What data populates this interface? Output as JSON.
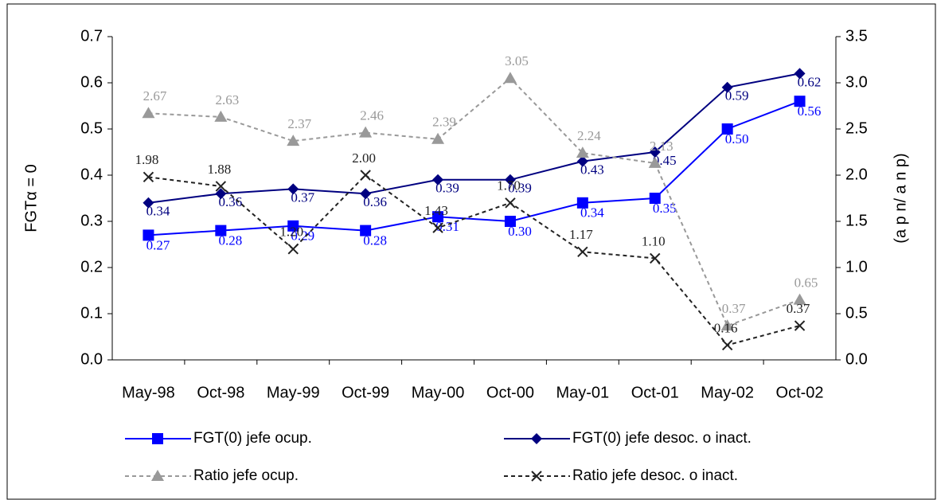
{
  "chart_data": {
    "type": "line",
    "y_label": "FGTα = 0",
    "y2_label": "(a p n/ a n p)",
    "categories": [
      "May-98",
      "Oct-98",
      "May-99",
      "Oct-99",
      "May-00",
      "Oct-00",
      "May-01",
      "Oct-01",
      "May-02",
      "Oct-02"
    ],
    "ylim": [
      0,
      0.7
    ],
    "yticks": [
      {
        "value": 0,
        "label": "0.0"
      },
      {
        "value": 0.1,
        "label": "0.1"
      },
      {
        "value": 0.2,
        "label": "0.2"
      },
      {
        "value": 0.3,
        "label": "0.3"
      },
      {
        "value": 0.4,
        "label": "0.4"
      },
      {
        "value": 0.5,
        "label": "0.5"
      },
      {
        "value": 0.6,
        "label": "0.6"
      },
      {
        "value": 0.7,
        "label": "0.7"
      }
    ],
    "y2lim": [
      0,
      3.5
    ],
    "y2ticks": [
      {
        "value": 0,
        "label": "0.0"
      },
      {
        "value": 0.5,
        "label": "0.5"
      },
      {
        "value": 1,
        "label": "1.0"
      },
      {
        "value": 1.5,
        "label": "1.5"
      },
      {
        "value": 2,
        "label": "2.0"
      },
      {
        "value": 2.5,
        "label": "2.5"
      },
      {
        "value": 3,
        "label": "3.0"
      },
      {
        "value": 3.5,
        "label": "3.5"
      }
    ],
    "grid": false,
    "series": [
      {
        "name": "FGT(0) jefe ocup.",
        "color": "#0000ff",
        "marker": "square",
        "dash": false,
        "values": [
          0.27,
          0.28,
          0.29,
          0.28,
          0.31,
          0.3,
          0.34,
          0.35,
          0.5,
          0.56
        ],
        "value_labels": [
          "0.27",
          "0.28",
          "0.29",
          "0.28",
          "0.31",
          "0.30",
          "0.34",
          "0.35",
          "0.50",
          "0.56"
        ]
      },
      {
        "name": "FGT(0) jefe desoc. o inact.",
        "color": "#000080",
        "marker": "diamond",
        "dash": false,
        "values": [
          0.34,
          0.36,
          0.37,
          0.36,
          0.39,
          0.39,
          0.43,
          0.45,
          0.59,
          0.62
        ],
        "value_labels": [
          "0.34",
          "0.36",
          "0.37",
          "0.36",
          "0.39",
          "0.39",
          "0.43",
          "0.45",
          "0.59",
          "0.62"
        ]
      },
      {
        "name": "Ratio jefe ocup.",
        "color": "#999999",
        "marker": "triangle",
        "dash": true,
        "axis": "y2",
        "values": [
          2.67,
          2.63,
          2.37,
          2.46,
          2.39,
          3.05,
          2.24,
          2.13,
          0.37,
          0.65
        ],
        "value_labels": [
          "2.67",
          "2.63",
          "2.37",
          "2.46",
          "2.39",
          "3.05",
          "2.24",
          "2.13",
          "0.37",
          "0.65"
        ]
      },
      {
        "name": "Ratio jefe desoc. o inact.",
        "color": "#222222",
        "marker": "x",
        "dash": true,
        "axis": "y2",
        "values": [
          1.98,
          1.88,
          1.2,
          2.0,
          1.43,
          1.7,
          1.17,
          1.1,
          0.16,
          0.37
        ],
        "value_labels": [
          "1.98",
          "1.88",
          "1.20",
          "2.00",
          "1.43",
          "1.70",
          "1.17",
          "1.10",
          "0.16",
          "0.37"
        ]
      }
    ]
  }
}
